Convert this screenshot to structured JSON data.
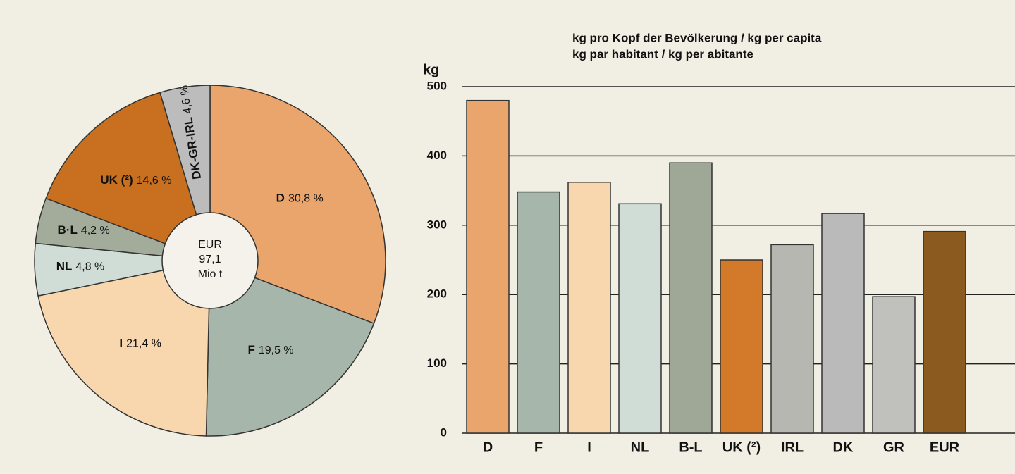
{
  "chart_data": [
    {
      "type": "pie",
      "categories": [
        "D",
        "F",
        "I",
        "NL",
        "B·L",
        "UK (²)",
        "DK-GR-IRL"
      ],
      "values": [
        30.8,
        19.5,
        21.4,
        4.8,
        4.2,
        14.6,
        4.6
      ],
      "value_labels": [
        "30,8 %",
        "19,5 %",
        "21,4 %",
        "4,8 %",
        "4,2 %",
        "14,6 %",
        "4,6 %"
      ],
      "colors": [
        "#eaa56c",
        "#a7b6ab",
        "#f8d7ae",
        "#d0dcd6",
        "#a3ab9b",
        "#c8701f",
        "#bcbcbc"
      ],
      "center_label": [
        "EUR",
        "97,1",
        "Mio t"
      ]
    },
    {
      "type": "bar",
      "title": [
        "kg pro Kopf der Bevölkerung / kg per capita",
        "kg par habitant / kg per abitante"
      ],
      "ylabel": "kg",
      "categories": [
        "D",
        "F",
        "I",
        "NL",
        "B-L",
        "UK (²)",
        "IRL",
        "DK",
        "GR",
        "EUR"
      ],
      "values": [
        480,
        348,
        362,
        331,
        390,
        250,
        272,
        317,
        197,
        291
      ],
      "colors": [
        "#eaa56c",
        "#a7b6ab",
        "#f8d7ae",
        "#d0dcd6",
        "#9fa896",
        "#d2792a",
        "#b7b7b2",
        "#bababa",
        "#c0c0bc",
        "#8a5a1f"
      ],
      "ylim": [
        0,
        500
      ],
      "yticks": [
        0,
        100,
        200,
        300,
        400,
        500
      ],
      "grid": true
    }
  ]
}
